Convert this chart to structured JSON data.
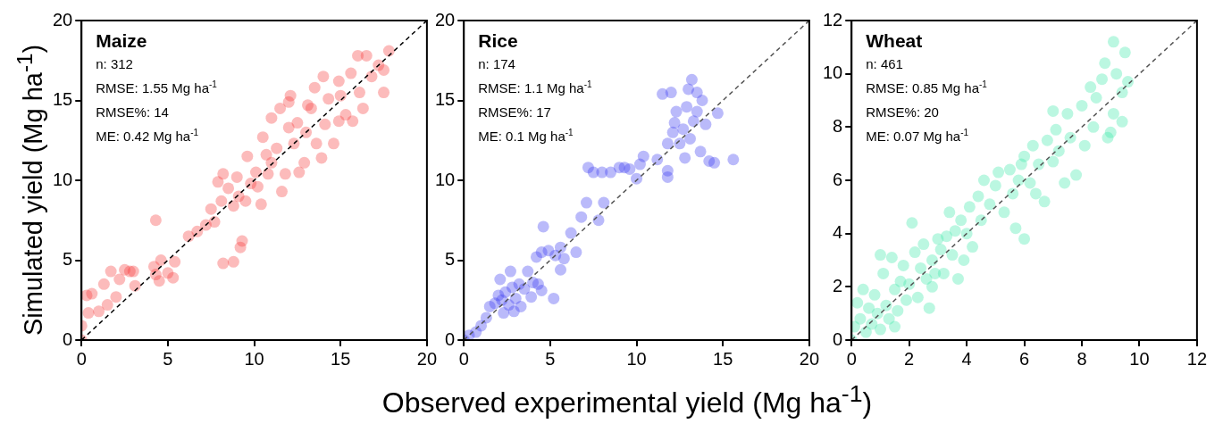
{
  "chart_data": [
    {
      "type": "scatter",
      "title": "Maize",
      "ylabel": "Simulated yield (Mg ha$^{-1}$)",
      "annotations": [
        "n: 312",
        "RMSE: 1.55 Mg ha$^{-1}$",
        "RMSE%: 14",
        "ME: 0.42 Mg ha$^{-1}$"
      ],
      "xlim": [
        0,
        20
      ],
      "ylim": [
        0,
        20
      ],
      "xticks": [
        0,
        5,
        10,
        15,
        20
      ],
      "yticks": [
        0,
        5,
        10,
        15,
        20
      ],
      "series": [
        {
          "marker": "circle",
          "color": "#f53b3b",
          "x": [
            0,
            0,
            0.3,
            0.6,
            0.4,
            1,
            1.3,
            1.7,
            2.2,
            2.5,
            2.8,
            3,
            1.5,
            2,
            3.1,
            4.2,
            4.3,
            4.6,
            5,
            5.3,
            4.5,
            4.3,
            5.4,
            6.2,
            6.7,
            7.2,
            7.7,
            7.5,
            8.2,
            8.8,
            9.2,
            9.3,
            7.9,
            8.2,
            8.5,
            8.8,
            9.1,
            9.5,
            9.8,
            9.6,
            10.2,
            10.4,
            10.8,
            10.5,
            11,
            11.3,
            11.6,
            11.8,
            12,
            12.3,
            12.6,
            12.9,
            13,
            13.3,
            13.6,
            13.9,
            14.1,
            14.3,
            14.6,
            14.9,
            15,
            15.3,
            15.6,
            15.7,
            16.1,
            16.3,
            16.5,
            16.8,
            17.2,
            17.5,
            17.8,
            17.5,
            12.1,
            13.5,
            14,
            11,
            10.1,
            9,
            8.1,
            12.5,
            10.7,
            13.1,
            14.9,
            16,
            11.5,
            12
          ],
          "values": [
            0,
            0.9,
            2.8,
            2.9,
            1.7,
            1.8,
            3.5,
            4.3,
            3.8,
            4.4,
            4.3,
            4.3,
            2.2,
            2.7,
            3.4,
            4.6,
            4.1,
            5,
            4.2,
            3.9,
            3.7,
            7.5,
            4.9,
            6.5,
            6.8,
            7.2,
            7.4,
            8.2,
            4.8,
            4.9,
            5.8,
            6.2,
            9.9,
            10.4,
            9.5,
            8.4,
            9,
            8.7,
            9.8,
            11.5,
            9.6,
            8.5,
            10.4,
            12.7,
            11.1,
            12,
            9.3,
            10.4,
            13.3,
            12.3,
            10.5,
            11.1,
            13,
            14.5,
            12.3,
            11.4,
            13.5,
            15.1,
            12.3,
            13.7,
            15.3,
            14.1,
            16.7,
            13.7,
            15.5,
            14.5,
            17.8,
            16.5,
            17.2,
            15.5,
            18.1,
            16.9,
            15.3,
            15.8,
            16.5,
            13.9,
            10.5,
            10.2,
            8.7,
            13.6,
            11.6,
            14.7,
            16.2,
            17.8,
            14.5,
            14.9
          ]
        },
        {
          "type": "line",
          "color": "#000000",
          "line_style": "dashed",
          "x": [
            0,
            20
          ],
          "values": [
            0,
            20
          ]
        }
      ]
    },
    {
      "type": "scatter",
      "title": "Rice",
      "xlabel": "Observed experimental yield (Mg ha$^{-1}$)",
      "annotations": [
        "n: 174",
        "RMSE: 1.1 Mg ha$^{-1}$",
        "RMSE%: 17",
        "ME: 0.1 Mg ha$^{-1}$"
      ],
      "xlim": [
        0,
        20
      ],
      "ylim": [
        0,
        20
      ],
      "xticks": [
        0,
        5,
        10,
        15,
        20
      ],
      "yticks": [
        0,
        5,
        10,
        15,
        20
      ],
      "series": [
        {
          "marker": "circle",
          "color": "#3a3af0",
          "x": [
            0,
            0.3,
            0.7,
            1,
            1.3,
            1.5,
            1.8,
            2,
            2.2,
            2.4,
            2.6,
            2.3,
            2.8,
            3,
            3.2,
            3.5,
            3.7,
            4,
            4.3,
            2.1,
            2.7,
            4.5,
            4.2,
            4.5,
            4.9,
            5.3,
            5.6,
            5.8,
            4.6,
            6.2,
            6.8,
            7.1,
            7.2,
            7.5,
            7.8,
            8.1,
            8,
            8.5,
            9,
            9.3,
            9.6,
            10,
            10.2,
            10.4,
            11.2,
            11.8,
            11.8,
            11.5,
            12,
            12.1,
            12.3,
            12.5,
            12.7,
            12.9,
            13,
            13.1,
            13.3,
            13.5,
            13.7,
            13.8,
            14,
            14.2,
            14.5,
            15.6,
            13.2,
            13.5,
            14.7,
            12.8,
            12.2,
            11.8,
            5.2,
            3.3,
            2.9,
            3.9,
            6.5,
            5.6
          ],
          "values": [
            0,
            0.3,
            0.5,
            0.9,
            1.4,
            2.1,
            2.3,
            2.8,
            2.5,
            3,
            2.2,
            1.7,
            3.3,
            2.6,
            3.5,
            3.2,
            4.3,
            3.6,
            3.5,
            3.8,
            4.3,
            3.1,
            5.2,
            5.5,
            5.6,
            5.3,
            5.8,
            5.1,
            7.1,
            6.7,
            7.7,
            8.6,
            10.8,
            10.5,
            7.5,
            8.6,
            10.5,
            10.5,
            10.8,
            10.8,
            10.7,
            10.1,
            11,
            11.5,
            11.3,
            10.2,
            10.6,
            15.4,
            15.5,
            13,
            14.3,
            12.3,
            13.2,
            14.6,
            15.7,
            12.6,
            13.7,
            14.3,
            11.8,
            15,
            13.5,
            11.2,
            11.1,
            11.3,
            16.3,
            15.5,
            14.2,
            11.4,
            13.6,
            12.3,
            2.6,
            2.1,
            1.8,
            2.7,
            5.5,
            4.4
          ]
        },
        {
          "type": "line",
          "color": "#555555",
          "line_style": "dashed",
          "x": [
            0,
            20
          ],
          "values": [
            0,
            20
          ]
        }
      ]
    },
    {
      "type": "scatter",
      "title": "Wheat",
      "annotations": [
        "n: 461",
        "RMSE: 0.85 Mg ha$^{-1}$",
        "RMSE%: 20",
        "ME: 0.07 Mg ha$^{-1}$"
      ],
      "xlim": [
        0,
        12
      ],
      "ylim": [
        0,
        12
      ],
      "xticks": [
        0,
        2,
        4,
        6,
        8,
        10,
        12
      ],
      "yticks": [
        0,
        2,
        4,
        6,
        8,
        10,
        12
      ],
      "series": [
        {
          "marker": "circle",
          "color": "#3de8a8",
          "x": [
            0,
            0.1,
            0.2,
            0.3,
            0.4,
            0.5,
            0.6,
            0.7,
            0.8,
            0.9,
            1,
            1.1,
            1.2,
            1.3,
            1.4,
            1.5,
            1.6,
            1.7,
            1.8,
            1.9,
            2,
            2.1,
            2.2,
            2.3,
            2.4,
            2.5,
            2.6,
            2.7,
            2.8,
            2.9,
            3,
            3.1,
            3.2,
            3.3,
            3.4,
            3.5,
            3.6,
            3.7,
            3.8,
            4,
            4.1,
            4.2,
            4.4,
            4.5,
            4.6,
            4.8,
            5,
            5.1,
            5.3,
            5.5,
            5.6,
            5.7,
            5.8,
            6,
            6,
            6.2,
            6.3,
            6.4,
            6.5,
            6.7,
            6.8,
            7,
            7,
            7.2,
            7.4,
            7.5,
            7.6,
            7.8,
            8,
            8.1,
            8.3,
            8.4,
            8.5,
            8.7,
            8.8,
            9,
            9.1,
            9.2,
            9.1,
            9.4,
            9.6,
            9.4,
            9.5,
            8.9,
            7.1,
            5.9,
            3.9,
            2.8,
            1.5,
            1
          ],
          "values": [
            0,
            0.5,
            1.4,
            0.8,
            1.9,
            0.3,
            1.2,
            0.6,
            1.7,
            1,
            0.4,
            2.5,
            1.3,
            0.8,
            3.1,
            1.9,
            1.1,
            2.2,
            2.8,
            1.5,
            2.1,
            4.4,
            3.3,
            1.6,
            2.7,
            3.6,
            2.3,
            1.2,
            3,
            2.5,
            3.8,
            3.4,
            2.5,
            3.9,
            4.8,
            3.2,
            4.1,
            2.3,
            4.5,
            4,
            5,
            3.5,
            5.4,
            4.5,
            6,
            5.1,
            5.8,
            6.3,
            4.8,
            6.4,
            5.5,
            4.2,
            6,
            6.9,
            3.8,
            5.9,
            7.3,
            5.5,
            6.6,
            5.2,
            7.5,
            8.6,
            6.7,
            7.1,
            5.9,
            8.5,
            7.6,
            6.2,
            8.8,
            7.3,
            9.5,
            8,
            9.1,
            9.8,
            10.4,
            7.8,
            8.5,
            10,
            11.2,
            9.3,
            9.7,
            8.2,
            10.8,
            7.6,
            7.9,
            6.6,
            3,
            2,
            0.5,
            3.2
          ]
        },
        {
          "type": "line",
          "color": "#555555",
          "line_style": "dashed",
          "x": [
            0,
            12
          ],
          "values": [
            0,
            12
          ]
        }
      ]
    }
  ]
}
